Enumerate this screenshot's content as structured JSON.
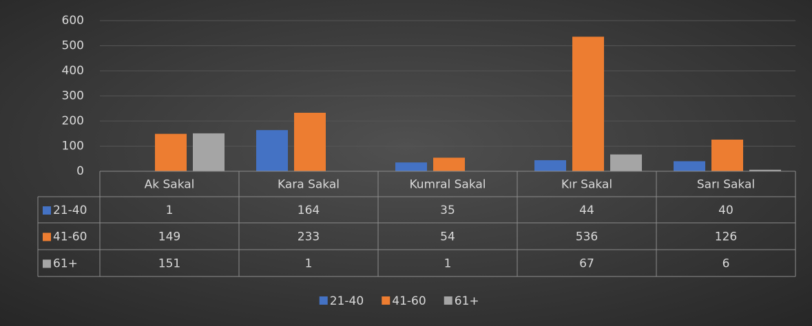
{
  "chart_data": {
    "type": "bar",
    "categories": [
      "Ak Sakal",
      "Kara Sakal",
      "Kumral Sakal",
      "Kır Sakal",
      "Sarı Sakal"
    ],
    "series": [
      {
        "name": "21-40",
        "color": "#4472c4",
        "values": [
          1,
          164,
          35,
          44,
          40
        ]
      },
      {
        "name": "41-60",
        "color": "#ed7d31",
        "values": [
          149,
          233,
          54,
          536,
          126
        ]
      },
      {
        "name": "61+",
        "color": "#a5a5a5",
        "values": [
          151,
          1,
          1,
          67,
          6
        ]
      }
    ],
    "ylim": [
      0,
      600
    ],
    "yticks": [
      0,
      100,
      200,
      300,
      400,
      500,
      600
    ],
    "grid": true,
    "legend": "bottom"
  }
}
